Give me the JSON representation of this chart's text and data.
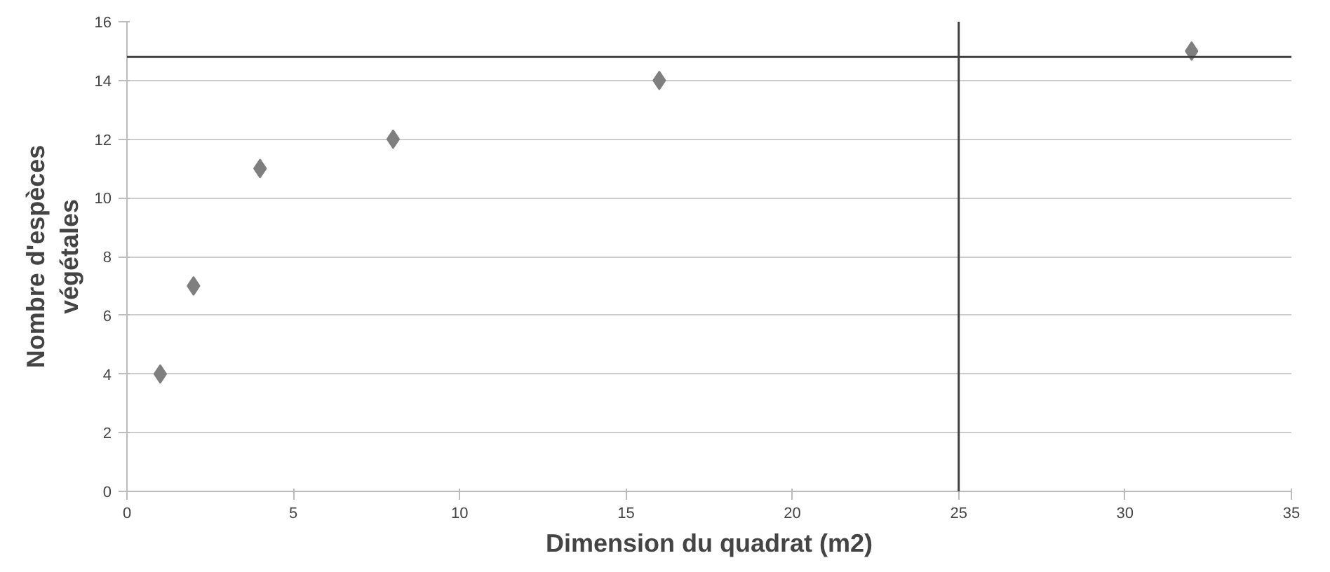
{
  "chart_data": {
    "type": "scatter",
    "xlabel": "Dimension du quadrat (m2)",
    "ylabel": "Nombre d'espèces\nvégétales",
    "x": [
      1,
      2,
      4,
      8,
      16,
      32
    ],
    "series": [
      {
        "color": "#7f7f7f",
        "values": [
          4,
          7,
          11,
          12,
          14,
          15
        ]
      }
    ],
    "xlim": [
      0,
      35
    ],
    "ylim": [
      0,
      16
    ],
    "xticks": [
      0,
      5,
      10,
      15,
      20,
      25,
      30,
      35
    ],
    "yticks": [
      0,
      2,
      4,
      6,
      8,
      10,
      12,
      14,
      16
    ],
    "grid": "y",
    "marker": "diamond",
    "ref_lines": [
      {
        "axis": "y",
        "value": 14.8,
        "color": "#404040"
      },
      {
        "axis": "x",
        "value": 25,
        "color": "#404040"
      }
    ]
  }
}
